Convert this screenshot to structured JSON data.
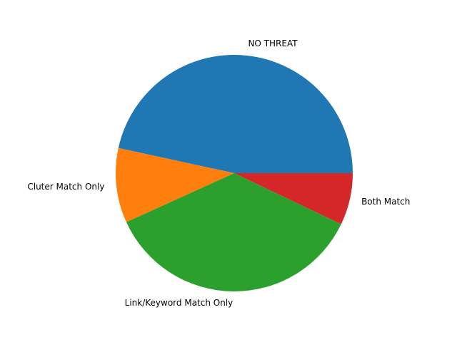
{
  "chart_data": {
    "type": "pie",
    "title": "",
    "start_angle": 0,
    "direction": "counterclockwise",
    "slices": [
      {
        "label": "NO THREAT",
        "value": 46.6,
        "color": "#1f77b4"
      },
      {
        "label": "Cluter Match Only",
        "value": 10.2,
        "color": "#ff7f0e"
      },
      {
        "label": "Link/Keyword Match Only",
        "value": 36.1,
        "color": "#2ca02c"
      },
      {
        "label": "Both Match",
        "value": 7.1,
        "color": "#d62728"
      }
    ]
  }
}
